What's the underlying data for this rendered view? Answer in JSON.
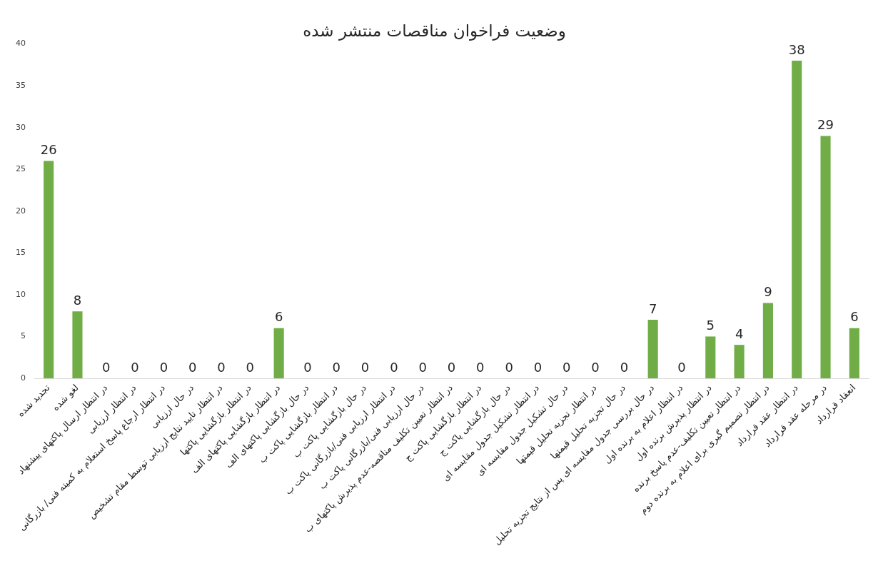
{
  "chart_data": {
    "type": "bar",
    "title": "وضعیت فراخوان مناقصات منتشر شده",
    "categories": [
      "تجدید شده",
      "لغو شده",
      "در انتظار ارسال پاکتهای پیشنهاد",
      "در انتظار ارزیابی",
      "در انتظار ارجاع پاسخ استعلام به کمیته فنی/ بازرگانی",
      "در حال ارزیابی",
      "در انتظار تایید نتایج ارزیابی توسط مقام تشخیص",
      "در انتظار بازگشایی پاکتها",
      "در انتظار بازگشایی پاکتهای الف",
      "در حال بازگشایی پاکتهای الف",
      "در انتظار بازگشایی پاکت ب",
      "در حال بازگشایی پاکت ب",
      "در انتظار ارزیابی فنی/بازرگانی پاکت ب",
      "در حال ارزیابی فنی/بازرگانی پاکت ب",
      "در انتظار تعیین تکلیف مناقصه-عدم پذیرش پاکتهای ب",
      "در انتظار بازگشایی پاکت ج",
      "در حال بازگشایی پاکت ج",
      "در انتظار تشکیل جدول مقایسه ای",
      "در حال تشکیل جدول مقایسه ای",
      "در انتظار تجزیه تحلیل قیمتها",
      "در حال تجزیه تحلیل قیمتها",
      "در حال بررسی جدول مقایسه ای پس از نتایج تجزیه تحلیل",
      "در انتظار اعلام به برنده اول",
      "در انتظار پذیرش برنده اول",
      "در انتظار تعیین تکلیف-عدم پاسخ برنده",
      "در انتظار تصمیم گیری برای اعلام به برنده دوم",
      "در انتظار عقد قرارداد",
      "در مرحله عقد قرارداد",
      "انعقاد قرارداد"
    ],
    "values": [
      26,
      8,
      0,
      0,
      0,
      0,
      0,
      0,
      6,
      0,
      0,
      0,
      0,
      0,
      0,
      0,
      0,
      0,
      0,
      0,
      0,
      7,
      0,
      5,
      4,
      9,
      38,
      29,
      6
    ],
    "color": "#70ad47",
    "ylim": [
      0,
      40
    ],
    "yticks": [
      0,
      5,
      10,
      15,
      20,
      25,
      30,
      35,
      40
    ],
    "data_labels": true
  }
}
